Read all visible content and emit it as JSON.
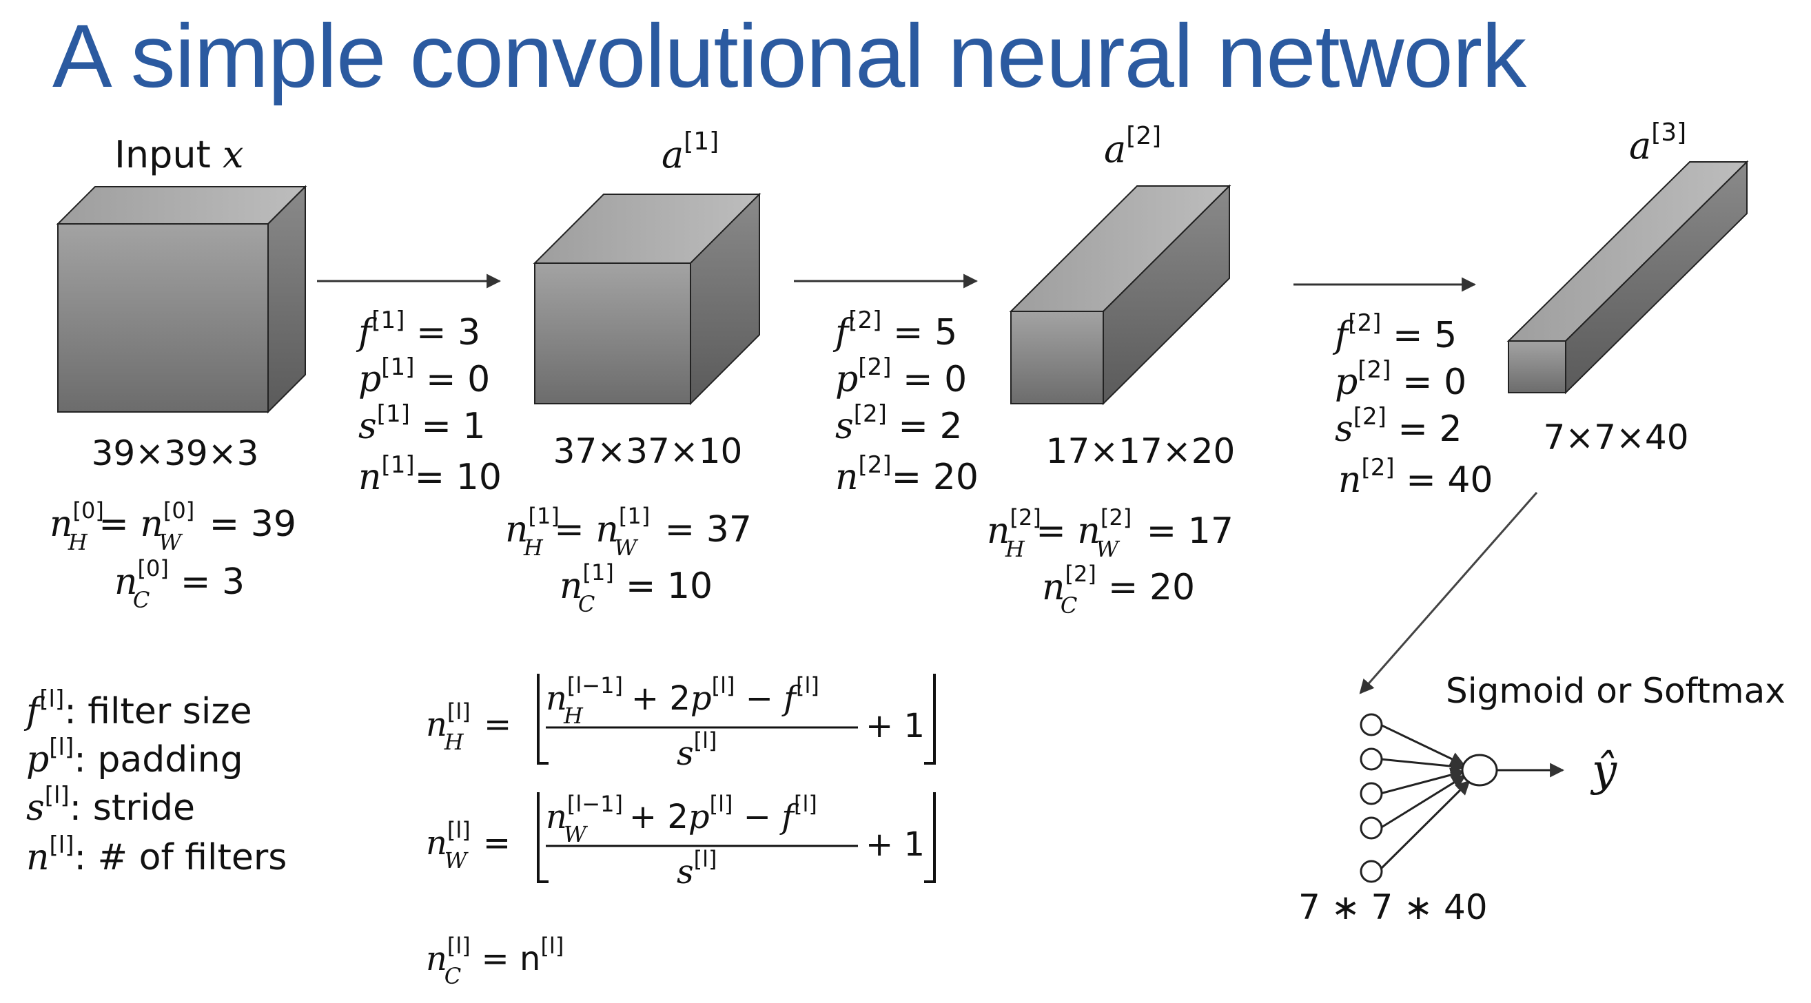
{
  "title": "A simple convolutional neural network",
  "colors": {
    "title": "#2b5aa0",
    "cube_dark": "#6a6a6a",
    "cube_light": "#b8b8b8",
    "line": "#333333"
  },
  "layers": [
    {
      "label_text": "Input ",
      "label_var": "x",
      "label_sup": "",
      "dims": "39×39×3",
      "n_hw": "39",
      "n_hw_sup": "[0]",
      "n_c": "3",
      "n_c_sup": "[0]"
    },
    {
      "label_text": "",
      "label_var": "a",
      "label_sup": "[1]",
      "dims": "37×37×10",
      "n_hw": "37",
      "n_hw_sup": "[1]",
      "n_c": "10",
      "n_c_sup": "[1]"
    },
    {
      "label_text": "",
      "label_var": "a",
      "label_sup": "[2]",
      "dims": "17×17×20",
      "n_hw": "17",
      "n_hw_sup": "[2]",
      "n_c": "20",
      "n_c_sup": "[2]"
    },
    {
      "label_text": "",
      "label_var": "a",
      "label_sup": "[3]",
      "dims": "7×7×40"
    }
  ],
  "hyperparams": [
    {
      "f_sup": "[1]",
      "f": "3",
      "p_sup": "[1]",
      "p": "0",
      "s_sup": "[1]",
      "s": "1",
      "n_sup": "[1]",
      "n": "10"
    },
    {
      "f_sup": "[2]",
      "f": "5",
      "p_sup": "[2]",
      "p": "0",
      "s_sup": "[2]",
      "s": "2",
      "n_sup": "[2]",
      "n": "20"
    },
    {
      "f_sup": "[2]",
      "f": "5",
      "p_sup": "[2]",
      "p": "0",
      "s_sup": "[2]",
      "s": "2",
      "n_sup": "[2]",
      "n": "40"
    }
  ],
  "legend": [
    {
      "var": "f",
      "sup": "[l]",
      "text": ": filter size"
    },
    {
      "var": "p",
      "sup": "[l]",
      "text": ": padding"
    },
    {
      "var": "s",
      "sup": "[l]",
      "text": ": stride"
    },
    {
      "var": "n",
      "sup": "[l]",
      "text": ": # of filters"
    }
  ],
  "formulas": {
    "sup_prev": "[l−1]",
    "sup_l": "[l]",
    "two": "+ 2",
    "minus": " − ",
    "plus_one": "+ 1",
    "nc_rhs": "= n"
  },
  "output": {
    "activation_label": "Sigmoid or Softmax",
    "prediction": "ŷ",
    "flatten_size": "7 ∗ 7 ∗ 40"
  }
}
